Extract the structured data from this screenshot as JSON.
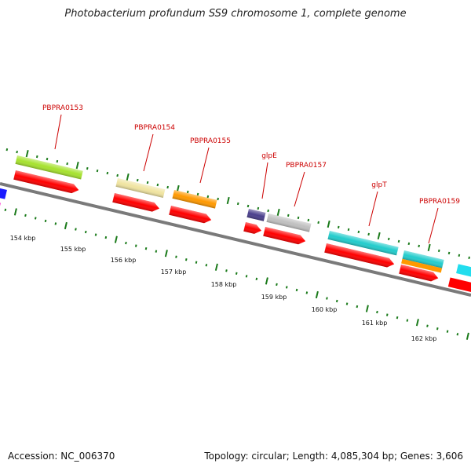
{
  "title": "Photobacterium profundum SS9 chromosome 1, complete genome",
  "footer": {
    "accession": "Accession: NC_006370",
    "summary": "Topology: circular; Length: 4,085,304 bp; Genes: 3,606"
  },
  "colors": {
    "backbone": "#7a7a7a",
    "tick": "#1a7a1a",
    "label": "#cc0000",
    "cds": "#ff0000"
  },
  "genes": [
    {
      "name": "PBPRA0153",
      "color": "#a6e22e"
    },
    {
      "name": "PBPRA0154",
      "color": "#f0e4a0"
    },
    {
      "name": "PBPRA0155",
      "color": "#ff9900"
    },
    {
      "name": "glpE",
      "color": "#4a3f8c"
    },
    {
      "name": "PBPRA0157",
      "color": "#c0c0c0"
    },
    {
      "name": "glpT",
      "color": "#22cccc"
    },
    {
      "name": "PBPRA0159",
      "color": "#22cccc"
    }
  ],
  "kbp_labels": [
    "154 kbp",
    "155 kbp",
    "156 kbp",
    "157 kbp",
    "158 kbp",
    "159 kbp",
    "160 kbp",
    "161 kbp",
    "162 kbp"
  ]
}
